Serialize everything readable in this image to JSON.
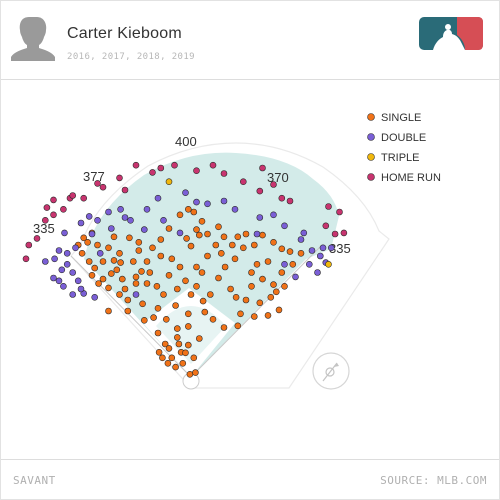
{
  "header": {
    "player_name": "Carter Kieboom",
    "seasons": "2016, 2017, 2018, 2019",
    "logo_icon": "mlb-logo-icon"
  },
  "footer": {
    "brand": "SAVANT",
    "source": "SOURCE: MLB.COM"
  },
  "colors": {
    "grass": "#d3ebe9",
    "infield_grass": "#ffffff",
    "foul_line": "#c8c8c8",
    "single": "#f07218",
    "double": "#7a5fd6",
    "triple": "#f0b70d",
    "home_run": "#c8346f",
    "logo_blue": "#2a6b78",
    "logo_red": "#d64e55"
  },
  "chart_data": {
    "type": "scatter",
    "title": "",
    "distance_labels": {
      "left_field_line": "335",
      "left_center": "377",
      "center_field": "400",
      "right_center": "370",
      "right_field_line": "335"
    },
    "legend": [
      {
        "key": "single",
        "label": "SINGLE"
      },
      {
        "key": "double",
        "label": "DOUBLE"
      },
      {
        "key": "triple",
        "label": "TRIPLE"
      },
      {
        "key": "home_run",
        "label": "HOME RUN"
      }
    ],
    "coordinate_units": "feet from home plate: x positive toward right field, y toward center field",
    "points": {
      "single": [
        [
          -195,
          253
        ],
        [
          -180,
          262
        ],
        [
          -188,
          245
        ],
        [
          -170,
          240
        ],
        [
          -205,
          240
        ],
        [
          -198,
          225
        ],
        [
          -150,
          235
        ],
        [
          -140,
          255
        ],
        [
          -130,
          225
        ],
        [
          -128,
          208
        ],
        [
          -112,
          253
        ],
        [
          -95,
          245
        ],
        [
          -160,
          210
        ],
        [
          -175,
          198
        ],
        [
          -160,
          178
        ],
        [
          -150,
          162
        ],
        [
          -120,
          160
        ],
        [
          -145,
          188
        ],
        [
          -105,
          210
        ],
        [
          -135,
          195
        ],
        [
          -90,
          192
        ],
        [
          -80,
          210
        ],
        [
          -70,
          235
        ],
        [
          -55,
          250
        ],
        [
          -40,
          270
        ],
        [
          -20,
          295
        ],
        [
          -5,
          305
        ],
        [
          5,
          300
        ],
        [
          20,
          283
        ],
        [
          10,
          268
        ],
        [
          -8,
          252
        ],
        [
          0,
          238
        ],
        [
          15,
          258
        ],
        [
          30,
          260
        ],
        [
          50,
          273
        ],
        [
          60,
          255
        ],
        [
          45,
          240
        ],
        [
          30,
          220
        ],
        [
          20,
          190
        ],
        [
          10,
          200
        ],
        [
          -20,
          200
        ],
        [
          -35,
          215
        ],
        [
          -55,
          220
        ],
        [
          -40,
          185
        ],
        [
          -62,
          165
        ],
        [
          -50,
          150
        ],
        [
          -80,
          170
        ],
        [
          -100,
          170
        ],
        [
          -115,
          140
        ],
        [
          -88,
          133
        ],
        [
          -60,
          125
        ],
        [
          -25,
          160
        ],
        [
          0,
          150
        ],
        [
          10,
          165
        ],
        [
          22,
          138
        ],
        [
          35,
          150
        ],
        [
          50,
          180
        ],
        [
          62,
          200
        ],
        [
          80,
          215
        ],
        [
          95,
          235
        ],
        [
          85,
          255
        ],
        [
          100,
          260
        ],
        [
          115,
          240
        ],
        [
          130,
          258
        ],
        [
          150,
          245
        ],
        [
          165,
          233
        ],
        [
          180,
          228
        ],
        [
          140,
          210
        ],
        [
          120,
          205
        ],
        [
          110,
          190
        ],
        [
          130,
          178
        ],
        [
          150,
          168
        ],
        [
          165,
          190
        ],
        [
          185,
          205
        ],
        [
          170,
          165
        ],
        [
          145,
          145
        ],
        [
          125,
          135
        ],
        [
          100,
          140
        ],
        [
          90,
          115
        ],
        [
          115,
          110
        ],
        [
          140,
          112
        ],
        [
          160,
          122
        ],
        [
          85,
          93
        ],
        [
          60,
          90
        ],
        [
          40,
          105
        ],
        [
          25,
          118
        ],
        [
          -5,
          92
        ],
        [
          -25,
          88
        ],
        [
          -45,
          105
        ],
        [
          -68,
          108
        ],
        [
          -85,
          103
        ],
        [
          -115,
          120
        ],
        [
          -130,
          150
        ],
        [
          -168,
          170
        ],
        [
          -180,
          185
        ],
        [
          -185,
          210
        ],
        [
          -60,
          80
        ],
        [
          -47,
          60
        ],
        [
          -25,
          72
        ],
        [
          -5,
          58
        ],
        [
          15,
          70
        ],
        [
          -18,
          45
        ],
        [
          -35,
          35
        ],
        [
          -15,
          25
        ],
        [
          5,
          35
        ],
        [
          -40,
          52
        ],
        [
          -58,
          45
        ],
        [
          -5,
          115
        ],
        [
          -28,
          130
        ],
        [
          -10,
          175
        ],
        [
          -150,
          120
        ],
        [
          -95,
          230
        ],
        [
          -75,
          190
        ],
        [
          72,
          160
        ],
        [
          82,
          145
        ],
        [
          110,
          165
        ],
        [
          -125,
          178
        ],
        [
          -140,
          212
        ],
        [
          -100,
          182
        ],
        [
          55,
          225
        ],
        [
          75,
          240
        ],
        [
          200,
          225
        ],
        [
          155,
          155
        ],
        [
          -2,
          5
        ],
        [
          8,
          8
        ],
        [
          -42,
          25
        ],
        [
          -28,
          18
        ],
        [
          -52,
          35
        ],
        [
          -22,
          60
        ],
        [
          -10,
          44
        ]
      ],
      "double": [
        [
          -240,
          230
        ],
        [
          -225,
          225
        ],
        [
          -210,
          235
        ],
        [
          -225,
          205
        ],
        [
          -235,
          195
        ],
        [
          -215,
          190
        ],
        [
          -205,
          175
        ],
        [
          -248,
          215
        ],
        [
          -175,
          145
        ],
        [
          -195,
          152
        ],
        [
          -165,
          225
        ],
        [
          -145,
          270
        ],
        [
          -170,
          285
        ],
        [
          -200,
          280
        ],
        [
          -230,
          262
        ],
        [
          -120,
          290
        ],
        [
          -80,
          305
        ],
        [
          -50,
          285
        ],
        [
          -20,
          262
        ],
        [
          30,
          315
        ],
        [
          60,
          320
        ],
        [
          80,
          305
        ],
        [
          125,
          290
        ],
        [
          170,
          275
        ],
        [
          200,
          250
        ],
        [
          220,
          230
        ],
        [
          235,
          220
        ],
        [
          215,
          205
        ],
        [
          245,
          208
        ],
        [
          240,
          235
        ],
        [
          205,
          262
        ],
        [
          190,
          182
        ],
        [
          170,
          205
        ],
        [
          -250,
          180
        ],
        [
          -215,
          150
        ],
        [
          -180,
          260
        ],
        [
          -110,
          285
        ],
        [
          -265,
          210
        ],
        [
          -240,
          175
        ],
        [
          -232,
          165
        ],
        [
          -200,
          160
        ],
        [
          -100,
          150
        ],
        [
          150,
          295
        ],
        [
          230,
          190
        ],
        [
          255,
          235
        ],
        [
          -128,
          305
        ],
        [
          -150,
          300
        ],
        [
          -85,
          268
        ],
        [
          120,
          260
        ],
        [
          10,
          318
        ],
        [
          -60,
          325
        ],
        [
          -10,
          335
        ],
        [
          -185,
          292
        ]
      ],
      "triple": [
        [
          -40,
          355
        ],
        [
          250,
          205
        ]
      ],
      "home_run": [
        [
          -265,
          285
        ],
        [
          -250,
          295
        ],
        [
          -232,
          305
        ],
        [
          -250,
          322
        ],
        [
          -220,
          325
        ],
        [
          -195,
          325
        ],
        [
          -170,
          352
        ],
        [
          -160,
          345
        ],
        [
          -130,
          362
        ],
        [
          -100,
          385
        ],
        [
          -70,
          372
        ],
        [
          -55,
          380
        ],
        [
          -30,
          385
        ],
        [
          10,
          375
        ],
        [
          40,
          385
        ],
        [
          60,
          370
        ],
        [
          95,
          355
        ],
        [
          125,
          338
        ],
        [
          150,
          350
        ],
        [
          130,
          380
        ],
        [
          165,
          325
        ],
        [
          250,
          310
        ],
        [
          270,
          300
        ],
        [
          262,
          260
        ],
        [
          278,
          262
        ],
        [
          -295,
          240
        ],
        [
          -280,
          252
        ],
        [
          -300,
          215
        ],
        [
          -262,
          308
        ],
        [
          -215,
          330
        ],
        [
          -120,
          340
        ],
        [
          180,
          320
        ],
        [
          245,
          275
        ]
      ]
    }
  }
}
